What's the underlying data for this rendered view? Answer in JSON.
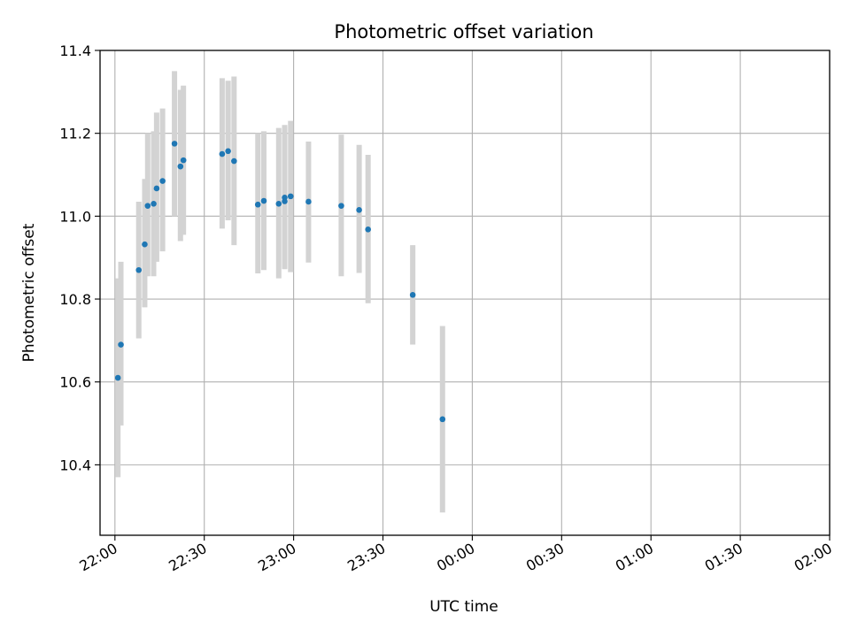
{
  "chart_data": {
    "type": "scatter",
    "title": "Photometric offset variation",
    "xlabel": "UTC time",
    "ylabel": "Photometric offset",
    "x_ticks": [
      "22:00",
      "22:30",
      "23:00",
      "23:30",
      "00:00",
      "00:30",
      "01:00",
      "01:30",
      "02:00"
    ],
    "y_ticks": [
      "10.4",
      "10.6",
      "10.8",
      "11.0",
      "11.2",
      "11.4"
    ],
    "xlim": [
      "21:55",
      "02:00"
    ],
    "ylim": [
      10.23,
      11.4
    ],
    "grid": true,
    "marker_color": "#1f77b4",
    "errorbar_color": "#d3d3d3",
    "points": [
      {
        "x": "22:01",
        "y": 10.61,
        "low": 10.37,
        "high": 10.85
      },
      {
        "x": "22:02",
        "y": 10.69,
        "low": 10.495,
        "high": 10.89
      },
      {
        "x": "22:08",
        "y": 10.87,
        "low": 10.705,
        "high": 11.035
      },
      {
        "x": "22:10",
        "y": 10.932,
        "low": 10.78,
        "high": 11.09
      },
      {
        "x": "22:11",
        "y": 11.025,
        "low": 10.855,
        "high": 11.2
      },
      {
        "x": "22:13",
        "y": 11.03,
        "low": 10.855,
        "high": 11.205
      },
      {
        "x": "22:14",
        "y": 11.067,
        "low": 10.89,
        "high": 11.25
      },
      {
        "x": "22:16",
        "y": 11.085,
        "low": 10.915,
        "high": 11.26
      },
      {
        "x": "22:20",
        "y": 11.175,
        "low": 11.0,
        "high": 11.35
      },
      {
        "x": "22:22",
        "y": 11.12,
        "low": 10.94,
        "high": 11.305
      },
      {
        "x": "22:23",
        "y": 11.135,
        "low": 10.955,
        "high": 11.315
      },
      {
        "x": "22:36",
        "y": 11.15,
        "low": 10.97,
        "high": 11.333
      },
      {
        "x": "22:38",
        "y": 11.157,
        "low": 10.99,
        "high": 11.327
      },
      {
        "x": "22:40",
        "y": 11.133,
        "low": 10.93,
        "high": 11.337
      },
      {
        "x": "22:48",
        "y": 11.028,
        "low": 10.862,
        "high": 11.2
      },
      {
        "x": "22:50",
        "y": 11.037,
        "low": 10.87,
        "high": 11.205
      },
      {
        "x": "22:55",
        "y": 11.03,
        "low": 10.85,
        "high": 11.213
      },
      {
        "x": "22:57",
        "y": 11.036,
        "low": 10.875,
        "high": 11.22
      },
      {
        "x": "22:57",
        "y": 11.045,
        "low": 10.872,
        "high": 11.215
      },
      {
        "x": "22:59",
        "y": 11.048,
        "low": 10.865,
        "high": 11.23
      },
      {
        "x": "23:05",
        "y": 11.035,
        "low": 10.888,
        "high": 11.18
      },
      {
        "x": "23:16",
        "y": 11.025,
        "low": 10.855,
        "high": 11.197
      },
      {
        "x": "23:22",
        "y": 11.015,
        "low": 10.863,
        "high": 11.172
      },
      {
        "x": "23:25",
        "y": 10.968,
        "low": 10.79,
        "high": 11.148
      },
      {
        "x": "23:40",
        "y": 10.81,
        "low": 10.69,
        "high": 10.93
      },
      {
        "x": "23:50",
        "y": 10.51,
        "low": 10.285,
        "high": 10.735
      }
    ]
  }
}
